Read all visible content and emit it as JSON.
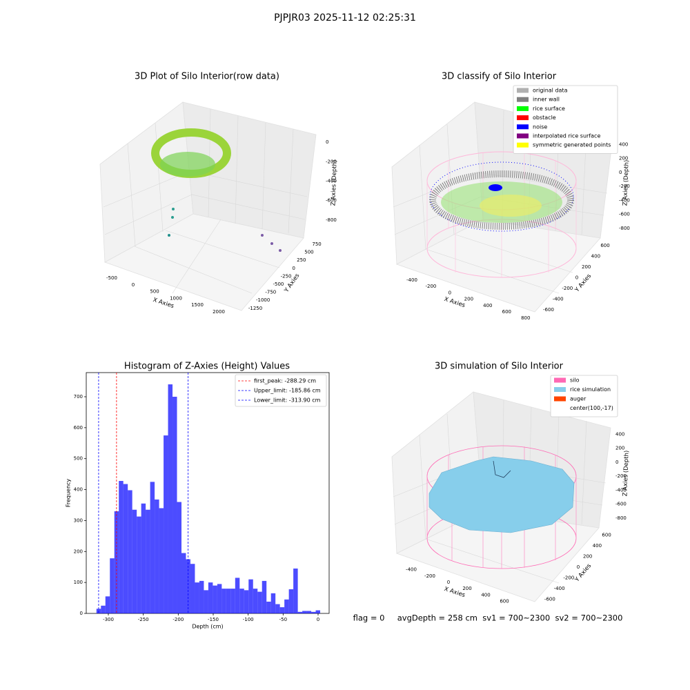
{
  "suptitle": "PJPJR03 2025-11-12 02:25:31",
  "chart_data": [
    {
      "type": "scatter3d",
      "title": "3D Plot of Silo Interior(row data)",
      "xlabel": "X Axies",
      "ylabel": "Y Axies",
      "zlabel": "Z Axies (Depth)",
      "xlim": [
        -700,
        2200
      ],
      "xticks": [
        -500,
        0,
        500,
        1000,
        1500,
        2000
      ],
      "ylim": [
        -1350,
        850
      ],
      "yticks": [
        -1250,
        -1000,
        -750,
        -500,
        -250,
        0,
        250,
        500,
        750
      ],
      "zlim": [
        -900,
        50
      ],
      "zticks": [
        -800,
        -600,
        -400,
        -200,
        0
      ]
    },
    {
      "type": "scatter3d",
      "title": "3D classify of Silo Interior",
      "xlabel": "X Axies",
      "ylabel": "Y Axies",
      "zlabel": "Z Axies (Depth)",
      "xlim": [
        -520,
        860
      ],
      "xticks": [
        -400,
        -200,
        0,
        200,
        400,
        600,
        800
      ],
      "ylim": [
        -680,
        680
      ],
      "yticks": [
        -600,
        -400,
        -200,
        0,
        200,
        400,
        600
      ],
      "zlim": [
        -900,
        460
      ],
      "zticks": [
        -800,
        -600,
        -400,
        -200,
        0,
        200,
        400
      ],
      "legend": "upper right",
      "series": [
        {
          "name": "original data",
          "color": "#b0b0b0"
        },
        {
          "name": "inner wall",
          "color": "#808080"
        },
        {
          "name": "rice surface",
          "color": "#00ff00"
        },
        {
          "name": "obstacle",
          "color": "#ff0000"
        },
        {
          "name": "noise",
          "color": "#0000ff"
        },
        {
          "name": "interpolated rice surface",
          "color": "#800080"
        },
        {
          "name": "symmetric generated points",
          "color": "#ffff00"
        }
      ]
    },
    {
      "type": "histogram",
      "title": "Histogram of Z-Axies (Height) Values",
      "xlabel": "Depth (cm)",
      "ylabel": "Frequency",
      "color": "#0000ff",
      "bins": [
        -317,
        -310.6,
        -304.2,
        -297.8,
        -291.4,
        -285,
        -278.6,
        -272.2,
        -265.8,
        -259.4,
        -253,
        -246.6,
        -240.2,
        -233.8,
        -227.4,
        -221,
        -214.6,
        -208.2,
        -201.8,
        -195.4,
        -189,
        -182.6,
        -176.2,
        -169.8,
        -163.4,
        -157,
        -150.6,
        -144.2,
        -137.8,
        -131.4,
        -125,
        -118.6,
        -112.2,
        -105.8,
        -99.4,
        -93,
        -86.6,
        -80.2,
        -73.8,
        -67.4,
        -61,
        -54.6,
        -48.2,
        -41.8,
        -35.4,
        -29,
        -22.6,
        -16.2,
        -9.8,
        -3.4,
        3
      ],
      "values": [
        15,
        25,
        55,
        178,
        330,
        428,
        418,
        398,
        335,
        313,
        355,
        335,
        425,
        368,
        340,
        575,
        740,
        700,
        360,
        195,
        175,
        160,
        100,
        105,
        75,
        100,
        90,
        95,
        80,
        80,
        80,
        115,
        80,
        75,
        110,
        80,
        70,
        105,
        38,
        65,
        30,
        20,
        45,
        78,
        145,
        5,
        8,
        8,
        5,
        10
      ],
      "xlim": [
        -331.6,
        15.8
      ],
      "xticks": [
        -300,
        -250,
        -200,
        -150,
        -100,
        -50,
        0
      ],
      "ylim": [
        0,
        778
      ],
      "yticks": [
        0,
        100,
        200,
        300,
        400,
        500,
        600,
        700
      ],
      "legend": "upper right",
      "lines": [
        {
          "name": "first_peak: -288.29 cm",
          "value": -288.29,
          "color": "#ff0000"
        },
        {
          "name": "Upper_limit: -185.86 cm",
          "value": -185.86,
          "color": "#0000ff"
        },
        {
          "name": "Lower_limit: -313.90 cm",
          "value": -313.9,
          "color": "#0000ff"
        }
      ]
    },
    {
      "type": "surface3d",
      "title": "3D simulation of Silo Interior",
      "xlabel": "X Axies",
      "ylabel": "Y Axies",
      "zlabel": "Z Axies (Depth)",
      "xlim": [
        -520,
        760
      ],
      "xticks": [
        -400,
        -200,
        0,
        200,
        400,
        600
      ],
      "ylim": [
        -680,
        680
      ],
      "yticks": [
        -600,
        -400,
        -200,
        0,
        200,
        400,
        600
      ],
      "zlim": [
        -900,
        480
      ],
      "zticks": [
        -800,
        -600,
        -400,
        -200,
        0,
        200,
        400
      ],
      "legend": "upper right",
      "series": [
        {
          "name": "silo",
          "color": "#ff69b4"
        },
        {
          "name": "rice simulation",
          "color": "#87ceeb"
        },
        {
          "name": "auger",
          "color": "#ff4500"
        },
        {
          "name": "center(100,-17)"
        }
      ],
      "annotation": "flag = 0     avgDepth = 258 cm  sv1 = 700~2300  sv2 = 700~2300"
    }
  ]
}
